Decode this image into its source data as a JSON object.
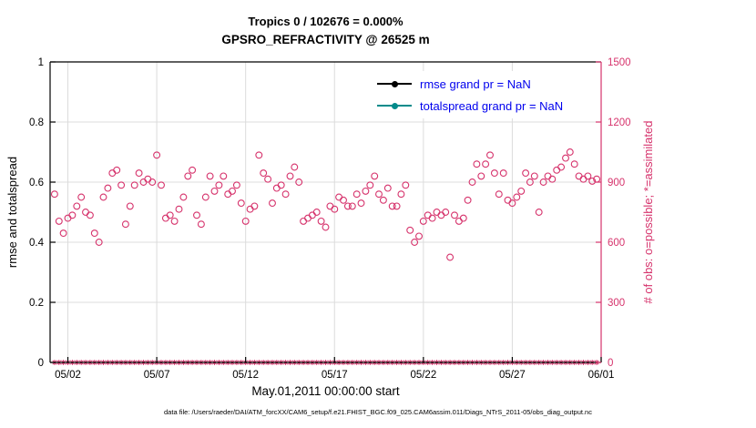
{
  "figure": {
    "title1": "Tropics 0 / 102676 = 0.000%",
    "title2": "GPSRO_REFRACTIVITY @ 26525 m",
    "xlabel": "May.01,2011 00:00:00 start",
    "ylabel_left": "rmse and totalspread",
    "ylabel_right": "# of obs: o=possible; *=assimilated",
    "caption": "data file: /Users/raeder/DAI/ATM_forcXX/CAM6_setup/f.e21.FHIST_BGC.f09_025.CAM6assim.011/Diags_NTrS_2011-05/obs_diag_output.nc"
  },
  "legend": {
    "text_color": "#0000ee",
    "items": [
      {
        "label": "rmse grand pr = NaN",
        "color": "#000000"
      },
      {
        "label": "totalspread grand pr = NaN",
        "color": "#008b8b"
      }
    ]
  },
  "colors": {
    "obs": "#d6336c",
    "grid": "#dcdcdc",
    "axis": "#000000",
    "background": "#ffffff"
  },
  "chart_data": {
    "type": "scatter",
    "title": "Tropics 0 / 102676 = 0.000% | GPSRO_REFRACTIVITY @ 26525 m",
    "xlabel": "May.01,2011 00:00:00 start",
    "x_axis": {
      "range_days": [
        1,
        32
      ],
      "tick_values": [
        2,
        7,
        12,
        17,
        22,
        27,
        32
      ],
      "tick_labels": [
        "05/02",
        "05/07",
        "05/12",
        "05/17",
        "05/22",
        "05/27",
        "06/01"
      ]
    },
    "y_left": {
      "label": "rmse and totalspread",
      "range": [
        0,
        1
      ],
      "ticks": [
        0,
        0.2,
        0.4,
        0.6,
        0.8,
        1
      ],
      "tick_labels": [
        "0",
        "0.2",
        "0.4",
        "0.6",
        "0.8",
        "1"
      ],
      "grid": true
    },
    "y_right": {
      "label": "# of obs: o=possible; *=assimilated",
      "range": [
        0,
        1500
      ],
      "ticks": [
        0,
        300,
        600,
        900,
        1200,
        1500
      ],
      "tick_labels": [
        "0",
        "300",
        "600",
        "900",
        "1200",
        "1500"
      ]
    },
    "rmse_grand_pr": "NaN",
    "totalspread_grand_pr": "NaN",
    "series": [
      {
        "name": "possible_obs",
        "marker": "circle",
        "axis": "right",
        "color": "#d6336c",
        "x_start_day": 1.25,
        "x_step_days": 0.25,
        "values": [
          840,
          705,
          645,
          720,
          735,
          780,
          825,
          750,
          735,
          645,
          600,
          825,
          870,
          945,
          960,
          885,
          690,
          780,
          885,
          945,
          900,
          915,
          900,
          1035,
          885,
          720,
          735,
          705,
          765,
          825,
          930,
          960,
          735,
          690,
          825,
          930,
          855,
          885,
          930,
          840,
          855,
          885,
          795,
          705,
          765,
          780,
          1035,
          945,
          915,
          795,
          870,
          885,
          840,
          930,
          975,
          900,
          705,
          720,
          735,
          750,
          705,
          675,
          780,
          765,
          825,
          810,
          780,
          780,
          840,
          795,
          855,
          885,
          930,
          840,
          810,
          870,
          780,
          780,
          840,
          885,
          660,
          600,
          630,
          705,
          735,
          720,
          750,
          735,
          750,
          525,
          735,
          705,
          720,
          810,
          900,
          990,
          930,
          990,
          1035,
          945,
          840,
          945,
          810,
          795,
          825,
          855,
          945,
          900,
          930,
          750,
          900,
          930,
          915,
          960,
          975,
          1020,
          1050,
          990,
          930,
          915,
          930,
          905,
          915
        ]
      },
      {
        "name": "assimilated_obs",
        "marker": "asterisk",
        "axis": "right",
        "color": "#d6336c",
        "x_start_day": 1.25,
        "x_step_days": 0.25,
        "constant_value": 0,
        "count": 123
      }
    ]
  }
}
